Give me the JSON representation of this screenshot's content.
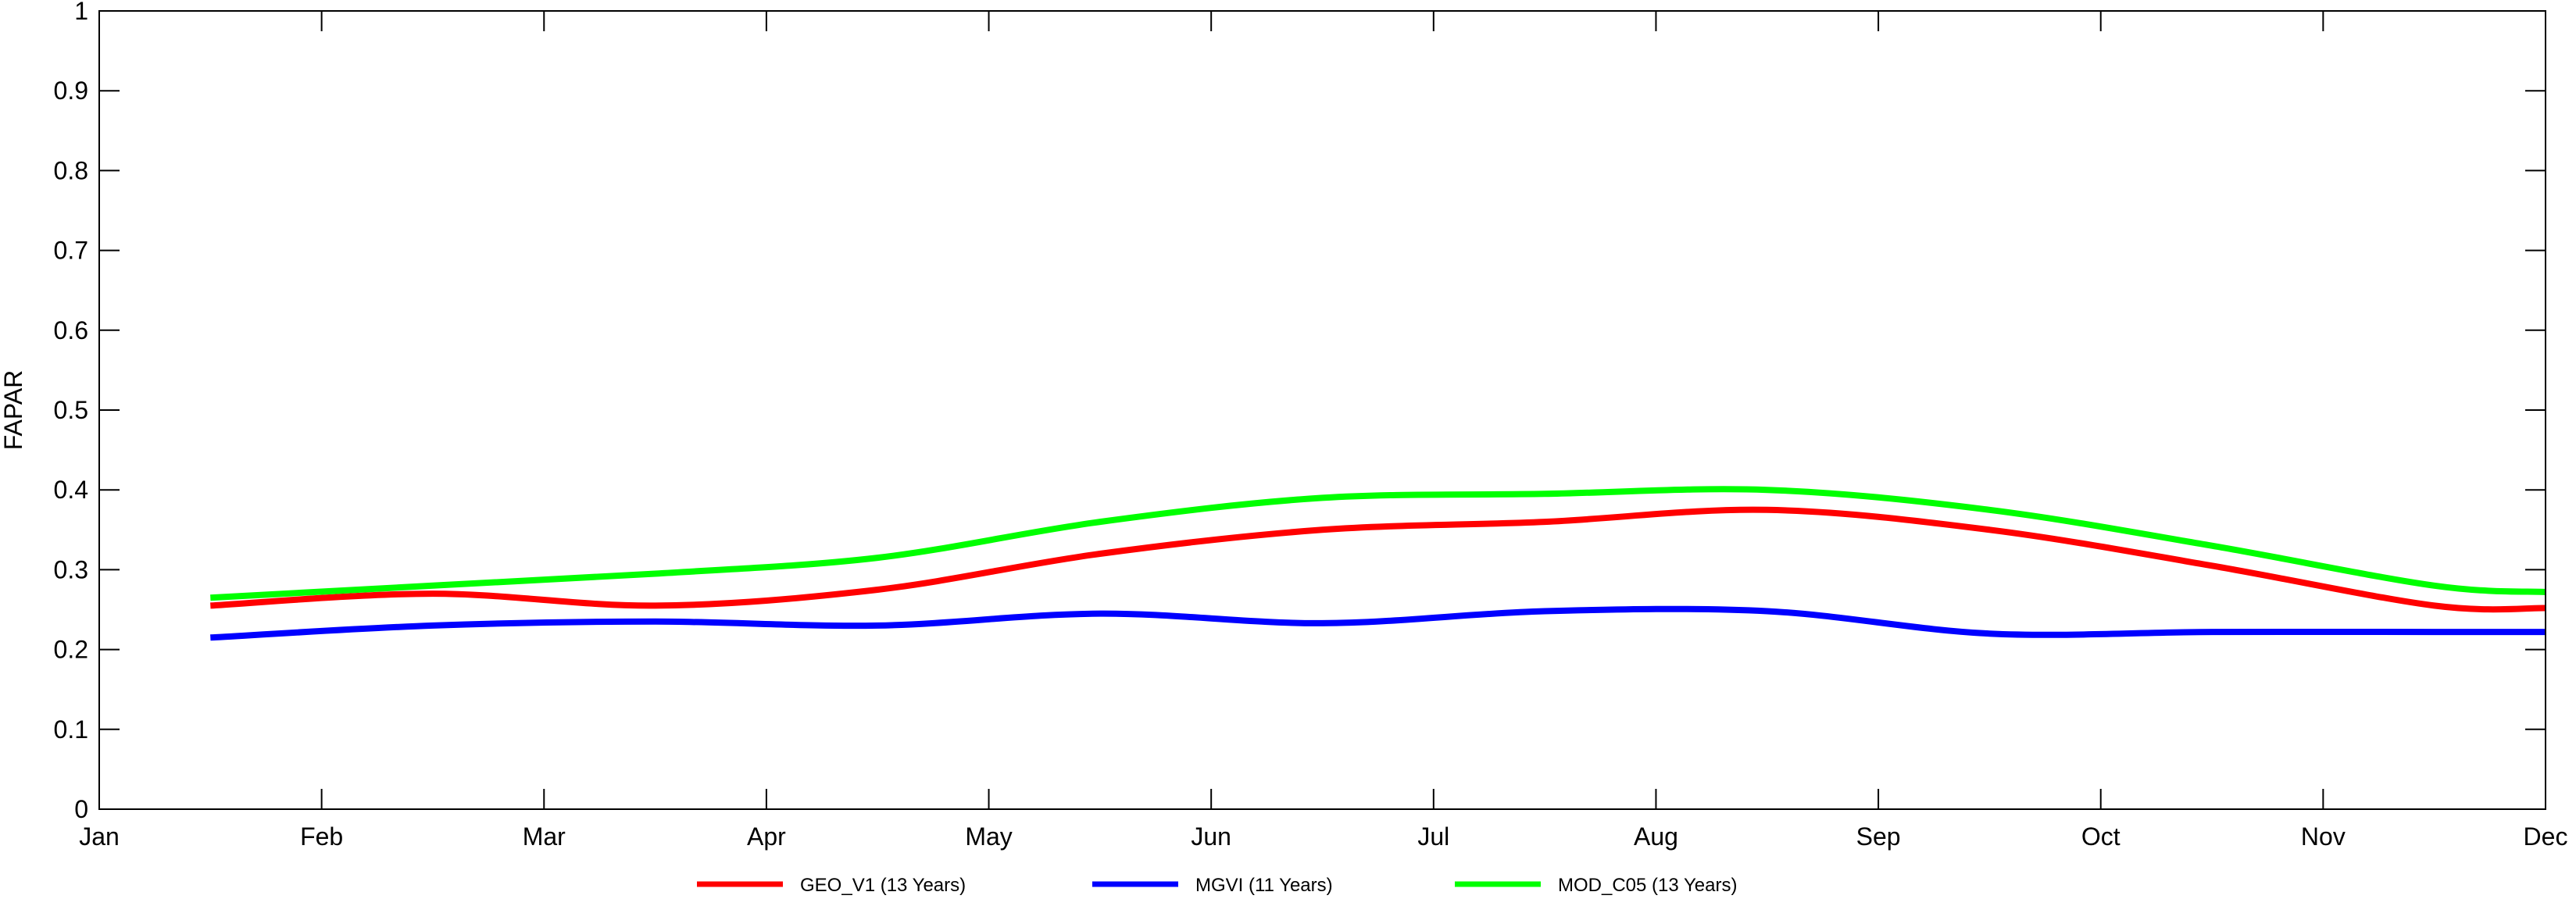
{
  "chart_data": {
    "type": "line",
    "title": "",
    "xlabel": "",
    "ylabel": "FAPAR",
    "x_ticks": [
      "Jan",
      "Feb",
      "Mar",
      "Apr",
      "May",
      "Jun",
      "Jul",
      "Aug",
      "Sep",
      "Oct",
      "Nov",
      "Dec"
    ],
    "x_range": [
      1,
      12
    ],
    "ylim": [
      0,
      1
    ],
    "y_ticks": [
      "0",
      "0.1",
      "0.2",
      "0.3",
      "0.4",
      "0.5",
      "0.6",
      "0.7",
      "0.8",
      "0.9",
      "1"
    ],
    "y_tick_values": [
      0,
      0.1,
      0.2,
      0.3,
      0.4,
      0.5,
      0.6,
      0.7,
      0.8,
      0.9,
      1.0
    ],
    "grid": false,
    "legend_position": "bottom",
    "series": [
      {
        "name": "GEO_V1 (13 Years)",
        "color": "#ff0000",
        "x": [
          1.5,
          2.5,
          3.5,
          4.5,
          5.5,
          6.5,
          7.5,
          8.5,
          9.5,
          10.5,
          11.5,
          12.0
        ],
        "values": [
          0.255,
          0.27,
          0.255,
          0.275,
          0.32,
          0.35,
          0.36,
          0.375,
          0.35,
          0.305,
          0.255,
          0.252
        ]
      },
      {
        "name": "MGVI (11 Years)",
        "color": "#0000ff",
        "x": [
          1.5,
          2.5,
          3.5,
          4.5,
          5.5,
          6.5,
          7.5,
          8.5,
          9.5,
          10.5,
          11.5,
          12.0
        ],
        "values": [
          0.215,
          0.23,
          0.235,
          0.23,
          0.245,
          0.233,
          0.248,
          0.248,
          0.22,
          0.222,
          0.222,
          0.222
        ]
      },
      {
        "name": "MOD_C05 (13 Years)",
        "color": "#00ff00",
        "x": [
          1.5,
          2.5,
          3.5,
          4.5,
          5.5,
          6.5,
          7.5,
          8.5,
          9.5,
          10.5,
          11.5,
          12.0
        ],
        "values": [
          0.265,
          0.28,
          0.295,
          0.315,
          0.36,
          0.39,
          0.395,
          0.4,
          0.375,
          0.33,
          0.28,
          0.272
        ]
      }
    ]
  }
}
